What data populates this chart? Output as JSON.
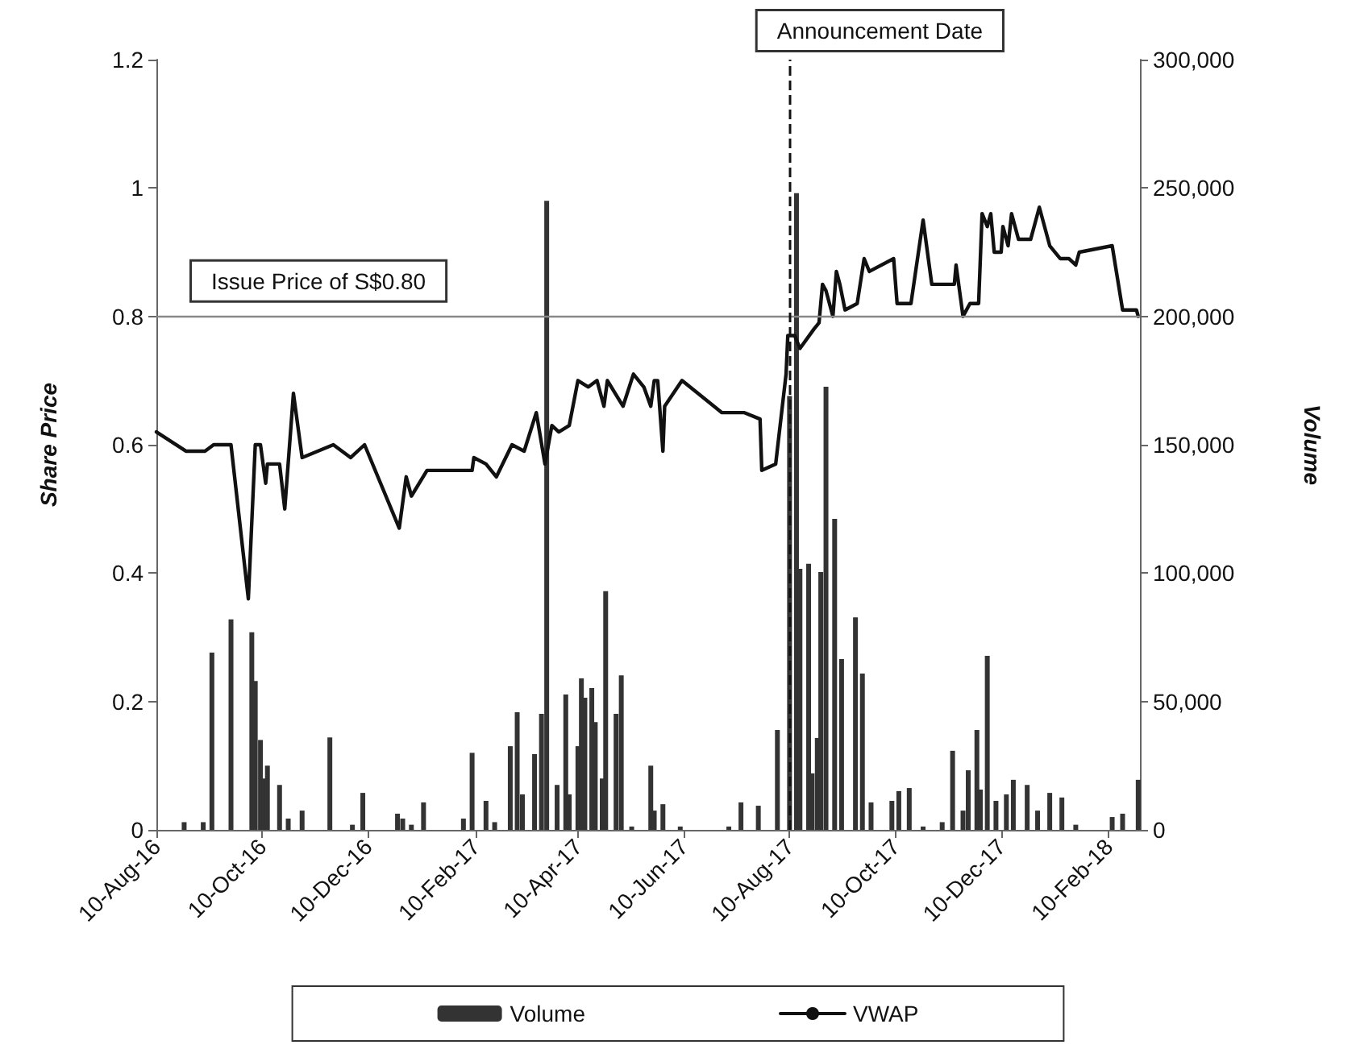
{
  "chart_data": {
    "type": "line",
    "ylabel": "Share Price",
    "y2label": "Volume",
    "xlim": [
      "2016-08-10",
      "2018-02-28"
    ],
    "xticks": [
      {
        "value": "2016-08-10",
        "label": "10-Aug-16"
      },
      {
        "value": "2016-10-10",
        "label": "10-Oct-16"
      },
      {
        "value": "2016-12-10",
        "label": "10-Dec-16"
      },
      {
        "value": "2017-02-10",
        "label": "10-Feb-17"
      },
      {
        "value": "2017-04-10",
        "label": "10-Apr-17"
      },
      {
        "value": "2017-06-10",
        "label": "10-Jun-17"
      },
      {
        "value": "2017-08-10",
        "label": "10-Aug-17"
      },
      {
        "value": "2017-10-10",
        "label": "10-Oct-17"
      },
      {
        "value": "2017-12-10",
        "label": "10-Dec-17"
      },
      {
        "value": "2018-02-10",
        "label": "10-Feb-18"
      }
    ],
    "ylim": [
      0,
      1.2
    ],
    "yticks": [
      0,
      0.2,
      0.4,
      0.6,
      0.8,
      1,
      1.2
    ],
    "y2lim": [
      0,
      300000
    ],
    "y2ticks": [
      0,
      {
        "value": 50000,
        "label": "50,000"
      },
      {
        "value": 100000,
        "label": "100,000"
      },
      {
        "value": 150000,
        "label": "150,000"
      },
      {
        "value": 200000,
        "label": "200,000"
      },
      {
        "value": 250000,
        "label": "250,000"
      },
      {
        "value": 300000,
        "label": "300,000"
      }
    ],
    "grid": false,
    "legend": "bottom",
    "marker": "none",
    "line_style": "solid",
    "ref_lines": [
      {
        "axis": "y",
        "value": 0.8,
        "label": "Issue Price of S$0.80",
        "color": "#888888",
        "line_style": "solid"
      },
      {
        "axis": "x",
        "value": "2017-08-10",
        "label": "Announcement Date",
        "color": "#111111",
        "line_style": "dashed"
      }
    ],
    "series": [
      {
        "name": "Volume",
        "type": "bar",
        "axis": "y2",
        "color": "#333333",
        "x": [
          "2016-08-26",
          "2016-09-06",
          "2016-09-11",
          "2016-09-22",
          "2016-10-04",
          "2016-10-06",
          "2016-10-09",
          "2016-10-11",
          "2016-10-13",
          "2016-10-20",
          "2016-10-25",
          "2016-11-02",
          "2016-11-18",
          "2016-12-01",
          "2016-12-07",
          "2016-12-27",
          "2016-12-30",
          "2017-01-04",
          "2017-01-11",
          "2017-02-03",
          "2017-02-08",
          "2017-02-16",
          "2017-02-21",
          "2017-03-02",
          "2017-03-06",
          "2017-03-09",
          "2017-03-16",
          "2017-03-20",
          "2017-03-23",
          "2017-03-29",
          "2017-04-03",
          "2017-04-05",
          "2017-04-10",
          "2017-04-12",
          "2017-04-14",
          "2017-04-18",
          "2017-04-20",
          "2017-04-24",
          "2017-04-26",
          "2017-05-02",
          "2017-05-05",
          "2017-05-11",
          "2017-05-22",
          "2017-05-24",
          "2017-05-29",
          "2017-06-08",
          "2017-07-06",
          "2017-07-13",
          "2017-07-23",
          "2017-08-03",
          "2017-08-10",
          "2017-08-14",
          "2017-08-16",
          "2017-08-21",
          "2017-08-23",
          "2017-08-26",
          "2017-08-28",
          "2017-08-31",
          "2017-09-05",
          "2017-09-09",
          "2017-09-17",
          "2017-09-21",
          "2017-09-26",
          "2017-10-08",
          "2017-10-12",
          "2017-10-18",
          "2017-10-26",
          "2017-11-06",
          "2017-11-12",
          "2017-11-18",
          "2017-11-21",
          "2017-11-26",
          "2017-11-28",
          "2017-12-02",
          "2017-12-07",
          "2017-12-13",
          "2017-12-17",
          "2017-12-25",
          "2017-12-31",
          "2018-01-07",
          "2018-01-14",
          "2018-01-22",
          "2018-02-12",
          "2018-02-18",
          "2018-02-27"
        ],
        "values": [
          3000,
          3000,
          69000,
          82000,
          77000,
          58000,
          35000,
          20000,
          25000,
          17500,
          4400,
          7500,
          36000,
          2000,
          14400,
          6300,
          4400,
          2000,
          10700,
          4400,
          30000,
          11300,
          3000,
          32600,
          45800,
          13800,
          29500,
          45200,
          245000,
          17500,
          52700,
          13800,
          32600,
          59000,
          51500,
          55200,
          42000,
          20000,
          93000,
          45200,
          60200,
          1300,
          25000,
          7500,
          10000,
          1300,
          1300,
          10700,
          9400,
          38900,
          169000,
          248000,
          101700,
          103600,
          22000,
          35800,
          100400,
          172600,
          121100,
          66500,
          82800,
          60900,
          10700,
          11300,
          15100,
          16300,
          1300,
          3000,
          30800,
          7500,
          23200,
          38900,
          15700,
          67800,
          11300,
          13800,
          19500,
          17500,
          7500,
          14400,
          12600,
          2000,
          5000,
          6300,
          19500
        ]
      },
      {
        "name": "VWAP",
        "color": "#111111",
        "x": [
          "2016-08-10",
          "2016-08-27",
          "2016-09-07",
          "2016-09-12",
          "2016-09-22",
          "2016-10-02",
          "2016-10-06",
          "2016-10-09",
          "2016-10-12",
          "2016-10-13",
          "2016-10-20",
          "2016-10-23",
          "2016-10-28",
          "2016-11-02",
          "2016-11-20",
          "2016-11-30",
          "2016-12-08",
          "2016-12-28",
          "2017-01-01",
          "2017-01-04",
          "2017-01-13",
          "2017-02-08",
          "2017-02-09",
          "2017-02-16",
          "2017-02-22",
          "2017-03-03",
          "2017-03-10",
          "2017-03-17",
          "2017-03-22",
          "2017-03-26",
          "2017-03-30",
          "2017-04-05",
          "2017-04-10",
          "2017-04-16",
          "2017-04-21",
          "2017-04-25",
          "2017-04-27",
          "2017-05-06",
          "2017-05-12",
          "2017-05-18",
          "2017-05-22",
          "2017-05-24",
          "2017-05-26",
          "2017-05-29",
          "2017-05-30",
          "2017-06-09",
          "2017-07-02",
          "2017-07-15",
          "2017-07-24",
          "2017-07-25",
          "2017-08-02",
          "2017-08-08",
          "2017-08-09",
          "2017-08-13",
          "2017-08-16",
          "2017-08-24",
          "2017-08-27",
          "2017-08-29",
          "2017-08-31",
          "2017-09-04",
          "2017-09-06",
          "2017-09-08",
          "2017-09-11",
          "2017-09-18",
          "2017-09-22",
          "2017-09-25",
          "2017-10-09",
          "2017-10-11",
          "2017-10-19",
          "2017-10-26",
          "2017-10-31",
          "2017-11-13",
          "2017-11-14",
          "2017-11-17",
          "2017-11-18",
          "2017-11-22",
          "2017-11-27",
          "2017-11-29",
          "2017-12-02",
          "2017-12-04",
          "2017-12-06",
          "2017-12-10",
          "2017-12-11",
          "2017-12-14",
          "2017-12-16",
          "2017-12-20",
          "2017-12-27",
          "2018-01-01",
          "2018-01-07",
          "2018-01-13",
          "2018-01-18",
          "2018-01-22",
          "2018-01-24",
          "2018-02-12",
          "2018-02-18",
          "2018-02-26",
          "2018-02-27"
        ],
        "values": [
          0.62,
          0.59,
          0.59,
          0.6,
          0.6,
          0.36,
          0.6,
          0.6,
          0.54,
          0.57,
          0.57,
          0.5,
          0.68,
          0.58,
          0.6,
          0.58,
          0.6,
          0.47,
          0.55,
          0.52,
          0.56,
          0.56,
          0.58,
          0.57,
          0.55,
          0.6,
          0.59,
          0.65,
          0.57,
          0.63,
          0.62,
          0.63,
          0.7,
          0.69,
          0.7,
          0.66,
          0.7,
          0.66,
          0.71,
          0.69,
          0.66,
          0.7,
          0.7,
          0.59,
          0.66,
          0.7,
          0.65,
          0.65,
          0.64,
          0.56,
          0.57,
          0.71,
          0.77,
          0.77,
          0.75,
          0.78,
          0.79,
          0.85,
          0.84,
          0.8,
          0.87,
          0.85,
          0.81,
          0.82,
          0.89,
          0.87,
          0.89,
          0.82,
          0.82,
          0.95,
          0.85,
          0.85,
          0.88,
          0.82,
          0.8,
          0.82,
          0.82,
          0.96,
          0.94,
          0.96,
          0.9,
          0.9,
          0.94,
          0.91,
          0.96,
          0.92,
          0.92,
          0.97,
          0.91,
          0.89,
          0.89,
          0.88,
          0.9,
          0.91,
          0.81,
          0.81,
          0.8
        ]
      }
    ]
  }
}
